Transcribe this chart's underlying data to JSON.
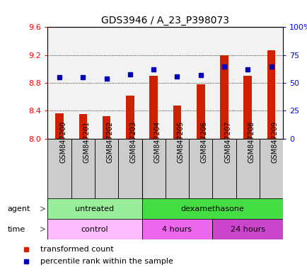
{
  "title": "GDS3946 / A_23_P398073",
  "samples": [
    "GSM847200",
    "GSM847201",
    "GSM847202",
    "GSM847203",
    "GSM847204",
    "GSM847205",
    "GSM847206",
    "GSM847207",
    "GSM847208",
    "GSM847209"
  ],
  "transformed_count": [
    8.36,
    8.35,
    8.32,
    8.62,
    8.9,
    8.48,
    8.78,
    9.2,
    8.9,
    9.27
  ],
  "percentile_rank": [
    55,
    55,
    54,
    58,
    62,
    56,
    57,
    65,
    62,
    65
  ],
  "ylim_left": [
    8.0,
    9.6
  ],
  "ylim_right": [
    0,
    100
  ],
  "yticks_left": [
    8.0,
    8.4,
    8.8,
    9.2,
    9.6
  ],
  "yticks_right": [
    0,
    25,
    50,
    75,
    100
  ],
  "ytick_labels_right": [
    "0",
    "25",
    "50",
    "75",
    "100%"
  ],
  "bar_color": "#cc2200",
  "dot_color": "#0000bb",
  "bar_width": 0.35,
  "agent_labels": [
    {
      "text": "untreated",
      "start": 0,
      "end": 3,
      "color": "#99ee99"
    },
    {
      "text": "dexamethasone",
      "start": 4,
      "end": 9,
      "color": "#44dd44"
    }
  ],
  "time_labels": [
    {
      "text": "control",
      "start": 0,
      "end": 3,
      "color": "#ffbbff"
    },
    {
      "text": "4 hours",
      "start": 4,
      "end": 6,
      "color": "#ee66ee"
    },
    {
      "text": "24 hours",
      "start": 7,
      "end": 9,
      "color": "#cc44cc"
    }
  ],
  "legend_items": [
    {
      "label": "transformed count",
      "color": "#cc2200"
    },
    {
      "label": "percentile rank within the sample",
      "color": "#0000bb"
    }
  ],
  "col_bg_color": "#cccccc",
  "grid_color": "#000000",
  "background_color": "#ffffff",
  "title_fontsize": 10,
  "tick_fontsize": 8,
  "sample_fontsize": 7
}
